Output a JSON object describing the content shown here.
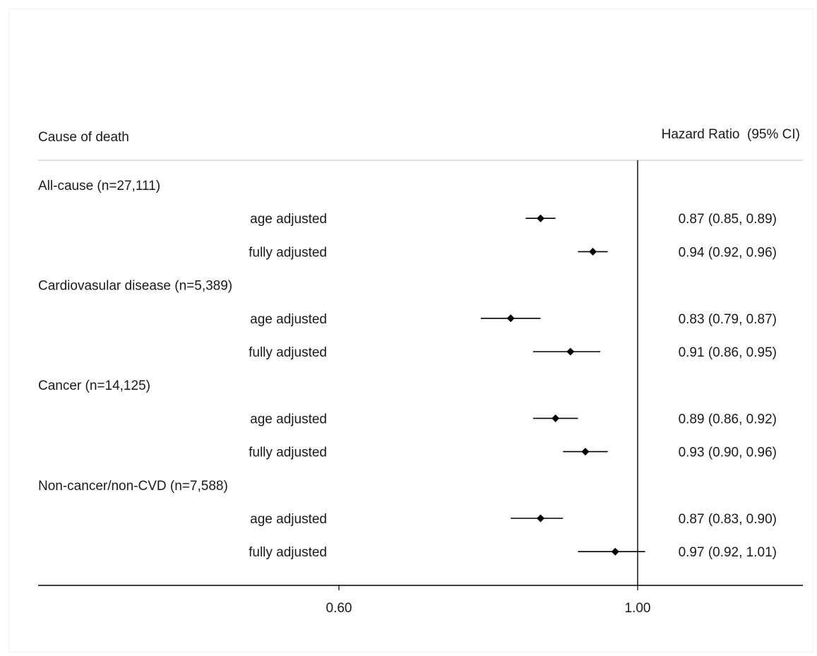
{
  "header": {
    "left": "Cause of death",
    "right": "Hazard Ratio  (95% CI)"
  },
  "chart_data": {
    "type": "forest",
    "x_reference": 1.0,
    "xlim": [
      0.3,
      1.17
    ],
    "xticks": [
      {
        "value": 0.6,
        "label": "0.60"
      },
      {
        "value": 1.0,
        "label": "1.00"
      }
    ],
    "groups": [
      {
        "label": "All-cause (n=27,111)",
        "rows": [
          {
            "label": "age adjusted",
            "hr": 0.87,
            "lo": 0.85,
            "hi": 0.89,
            "text": "0.87 (0.85, 0.89)"
          },
          {
            "label": "fully adjusted",
            "hr": 0.94,
            "lo": 0.92,
            "hi": 0.96,
            "text": "0.94 (0.92, 0.96)"
          }
        ]
      },
      {
        "label": "Cardiovasular disease (n=5,389)",
        "rows": [
          {
            "label": "age adjusted",
            "hr": 0.83,
            "lo": 0.79,
            "hi": 0.87,
            "text": "0.83 (0.79, 0.87)"
          },
          {
            "label": "fully adjusted",
            "hr": 0.91,
            "lo": 0.86,
            "hi": 0.95,
            "text": "0.91 (0.86, 0.95)"
          }
        ]
      },
      {
        "label": "Cancer (n=14,125)",
        "rows": [
          {
            "label": "age adjusted",
            "hr": 0.89,
            "lo": 0.86,
            "hi": 0.92,
            "text": "0.89 (0.86, 0.92)"
          },
          {
            "label": "fully adjusted",
            "hr": 0.93,
            "lo": 0.9,
            "hi": 0.96,
            "text": "0.93 (0.90, 0.96)"
          }
        ]
      },
      {
        "label": "Non-cancer/non-CVD (n=7,588)",
        "rows": [
          {
            "label": "age adjusted",
            "hr": 0.87,
            "lo": 0.83,
            "hi": 0.9,
            "text": "0.87 (0.83, 0.90)"
          },
          {
            "label": "fully adjusted",
            "hr": 0.97,
            "lo": 0.92,
            "hi": 1.01,
            "text": "0.97 (0.92, 1.01)"
          }
        ]
      }
    ]
  }
}
